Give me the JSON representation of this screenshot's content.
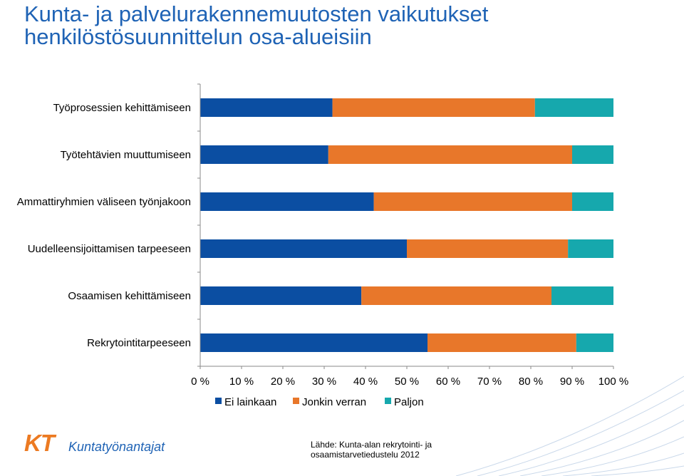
{
  "title": {
    "line1": "Kunta- ja palvelurakennemuutosten vaikutukset",
    "line2": "henkilöstösuunnittelun osa-alueisiin"
  },
  "chart_data": {
    "type": "bar",
    "orientation": "horizontal",
    "stacked": "100%",
    "categories": [
      "Työprosessien kehittämiseen",
      "Työtehtävien muuttumiseen",
      "Ammattiryhmien väliseen työnjakoon",
      "Uudelleensijoittamisen tarpeeseen",
      "Osaamisen kehittämiseen",
      "Rekrytointitarpeeseen"
    ],
    "series": [
      {
        "name": "Ei lainkaan",
        "color": "#0b4ea2",
        "values": [
          32,
          31,
          42,
          50,
          39,
          55
        ]
      },
      {
        "name": "Jonkin verran",
        "color": "#e8772a",
        "values": [
          49,
          59,
          48,
          39,
          46,
          36
        ]
      },
      {
        "name": "Paljon",
        "color": "#16a8ad",
        "values": [
          19,
          10,
          10,
          11,
          15,
          9
        ]
      }
    ],
    "x_ticks": [
      "0 %",
      "10 %",
      "20 %",
      "30 %",
      "40 %",
      "50 %",
      "60 %",
      "70 %",
      "80 %",
      "90 %",
      "100 %"
    ],
    "xlim": [
      0,
      100
    ],
    "grid": false,
    "legend_position": "bottom"
  },
  "logo": {
    "mark": "KT",
    "name": "Kuntatyönantajat"
  },
  "source": {
    "line1": "Lähde: Kunta-alan rekrytointi- ja",
    "line2": "osaamistarvetiedustelu 2012"
  }
}
